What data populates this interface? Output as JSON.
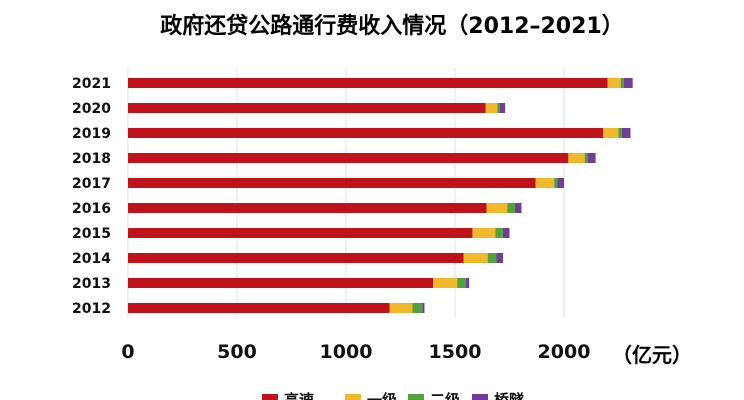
{
  "chart_data": {
    "type": "bar",
    "orientation": "horizontal",
    "stacked": true,
    "title": "政府还贷公路通行费收入情况（2012–2021）",
    "unit_label": "（亿元）",
    "categories": [
      "2021",
      "2020",
      "2019",
      "2018",
      "2017",
      "2016",
      "2015",
      "2014",
      "2013",
      "2012"
    ],
    "xlim": [
      0,
      2300
    ],
    "x_ticks": [
      "0",
      "500",
      "1000",
      "1500",
      "2000"
    ],
    "x_tick_values": [
      0,
      500,
      1000,
      1500,
      2000
    ],
    "grid": true,
    "legend_position": "bottom",
    "series": [
      {
        "name": "高速",
        "color": "#C0121B",
        "values": [
          2200,
          1640,
          2180,
          2020,
          1870,
          1645,
          1580,
          1540,
          1400,
          1200
        ]
      },
      {
        "name": "一级",
        "color": "#F1B82B",
        "values": [
          60,
          55,
          70,
          75,
          85,
          95,
          105,
          110,
          110,
          105
        ]
      },
      {
        "name": "二级",
        "color": "#4FA33A",
        "values": [
          15,
          10,
          15,
          15,
          15,
          35,
          35,
          40,
          40,
          45
        ]
      },
      {
        "name": "桥隧",
        "color": "#6E3E98",
        "values": [
          40,
          25,
          40,
          35,
          30,
          30,
          30,
          30,
          15,
          10
        ]
      }
    ]
  }
}
